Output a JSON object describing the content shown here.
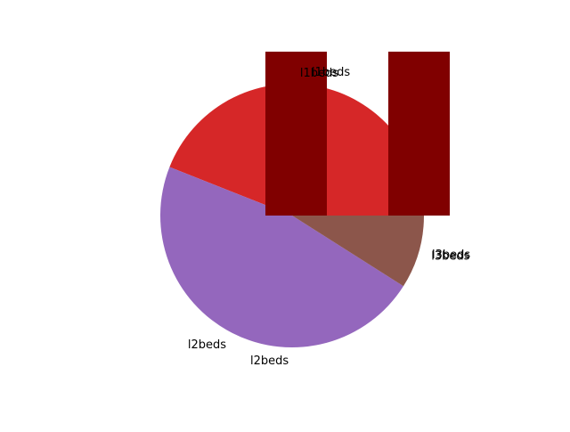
{
  "chart_data": [
    {
      "type": "pie",
      "title": "",
      "start_angle_deg": 0,
      "direction": "counterclockwise",
      "slices": [
        {
          "label": "l1beds",
          "value": 44,
          "color": "#d62728"
        },
        {
          "label": "l2beds",
          "value": 47,
          "color": "#9467bd"
        },
        {
          "label": "l3beds",
          "value": 9,
          "color": "#8c564b"
        }
      ],
      "extra_labels": [
        {
          "text": "l1beds"
        },
        {
          "text": "l2beds"
        },
        {
          "text": "l3beds"
        }
      ]
    },
    {
      "type": "bar",
      "title": "",
      "categories": [
        "",
        ""
      ],
      "values": [
        1,
        1
      ],
      "color": "#800000"
    }
  ]
}
